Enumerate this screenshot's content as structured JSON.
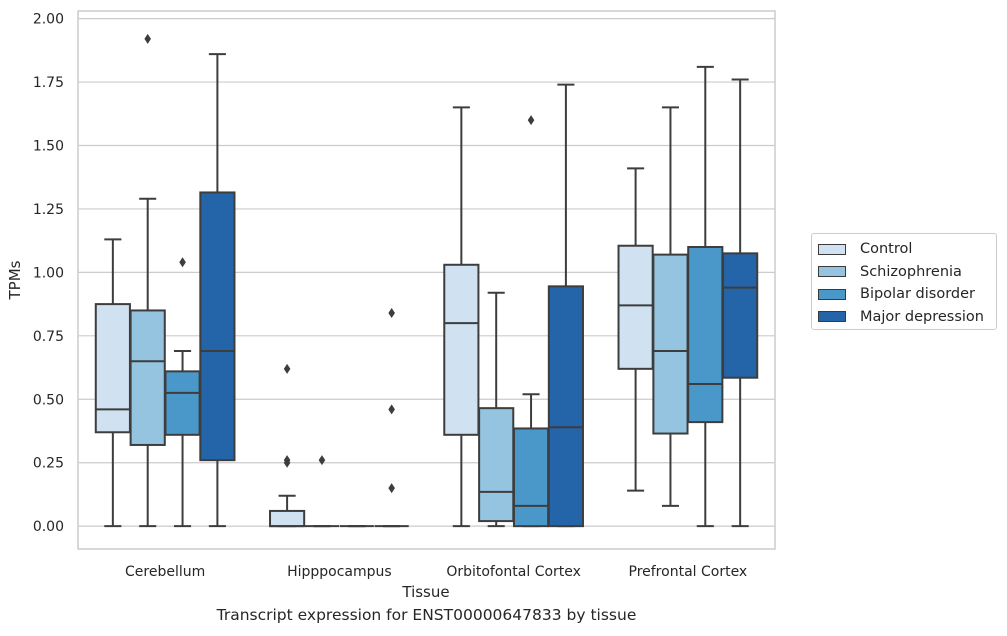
{
  "caption": "Transcript expression for ENST00000647833 by tissue",
  "chart_data": {
    "type": "box",
    "xlabel": "Tissue",
    "ylabel": "TPMs",
    "ylim": [
      -0.09,
      2.03
    ],
    "yticks": [
      "0.00",
      "0.25",
      "0.50",
      "0.75",
      "1.00",
      "1.25",
      "1.50",
      "1.75",
      "2.00"
    ],
    "ytick_values": [
      0,
      0.25,
      0.5,
      0.75,
      1.0,
      1.25,
      1.5,
      1.75,
      2.0
    ],
    "grid": true,
    "legend_position": "right",
    "categories": [
      "Cerebellum",
      "Hipppocampus",
      "Orbitofontal Cortex",
      "Prefrontal Cortex"
    ],
    "series": [
      {
        "name": "Control",
        "color": "#d0e1f2",
        "boxes": [
          {
            "whisker_low": 0.0,
            "q1": 0.37,
            "median": 0.46,
            "q3": 0.875,
            "whisker_high": 1.13,
            "outliers": []
          },
          {
            "whisker_low": 0.0,
            "q1": 0.0,
            "median": 0.0,
            "q3": 0.06,
            "whisker_high": 0.12,
            "outliers": [
              0.25,
              0.26,
              0.62
            ]
          },
          {
            "whisker_low": 0.0,
            "q1": 0.36,
            "median": 0.8,
            "q3": 1.03,
            "whisker_high": 1.65,
            "outliers": []
          },
          {
            "whisker_low": 0.14,
            "q1": 0.62,
            "median": 0.87,
            "q3": 1.105,
            "whisker_high": 1.41,
            "outliers": []
          }
        ]
      },
      {
        "name": "Schizophrenia",
        "color": "#94c4df",
        "boxes": [
          {
            "whisker_low": 0.0,
            "q1": 0.32,
            "median": 0.65,
            "q3": 0.85,
            "whisker_high": 1.29,
            "outliers": [
              1.92
            ]
          },
          {
            "whisker_low": 0.0,
            "q1": 0.0,
            "median": 0.0,
            "q3": 0.0,
            "whisker_high": 0.0,
            "outliers": [
              0.26
            ]
          },
          {
            "whisker_low": 0.0,
            "q1": 0.02,
            "median": 0.135,
            "q3": 0.465,
            "whisker_high": 0.92,
            "outliers": []
          },
          {
            "whisker_low": 0.08,
            "q1": 0.365,
            "median": 0.69,
            "q3": 1.07,
            "whisker_high": 1.65,
            "outliers": []
          }
        ]
      },
      {
        "name": "Bipolar disorder",
        "color": "#4a98c9",
        "boxes": [
          {
            "whisker_low": 0.0,
            "q1": 0.36,
            "median": 0.525,
            "q3": 0.61,
            "whisker_high": 0.69,
            "outliers": [
              1.04
            ]
          },
          {
            "whisker_low": 0.0,
            "q1": 0.0,
            "median": 0.0,
            "q3": 0.0,
            "whisker_high": 0.0,
            "outliers": []
          },
          {
            "whisker_low": 0.0,
            "q1": 0.0,
            "median": 0.08,
            "q3": 0.385,
            "whisker_high": 0.52,
            "outliers": [
              1.6
            ]
          },
          {
            "whisker_low": 0.0,
            "q1": 0.41,
            "median": 0.56,
            "q3": 1.1,
            "whisker_high": 1.81,
            "outliers": []
          }
        ]
      },
      {
        "name": "Major depression",
        "color": "#2464a8",
        "boxes": [
          {
            "whisker_low": 0.0,
            "q1": 0.26,
            "median": 0.69,
            "q3": 1.315,
            "whisker_high": 1.86,
            "outliers": []
          },
          {
            "whisker_low": 0.0,
            "q1": 0.0,
            "median": 0.0,
            "q3": 0.0,
            "whisker_high": 0.0,
            "outliers": [
              0.15,
              0.46,
              0.84
            ]
          },
          {
            "whisker_low": 0.0,
            "q1": 0.0,
            "median": 0.39,
            "q3": 0.945,
            "whisker_high": 1.74,
            "outliers": []
          },
          {
            "whisker_low": 0.0,
            "q1": 0.585,
            "median": 0.94,
            "q3": 1.075,
            "whisker_high": 1.76,
            "outliers": []
          }
        ]
      }
    ]
  }
}
